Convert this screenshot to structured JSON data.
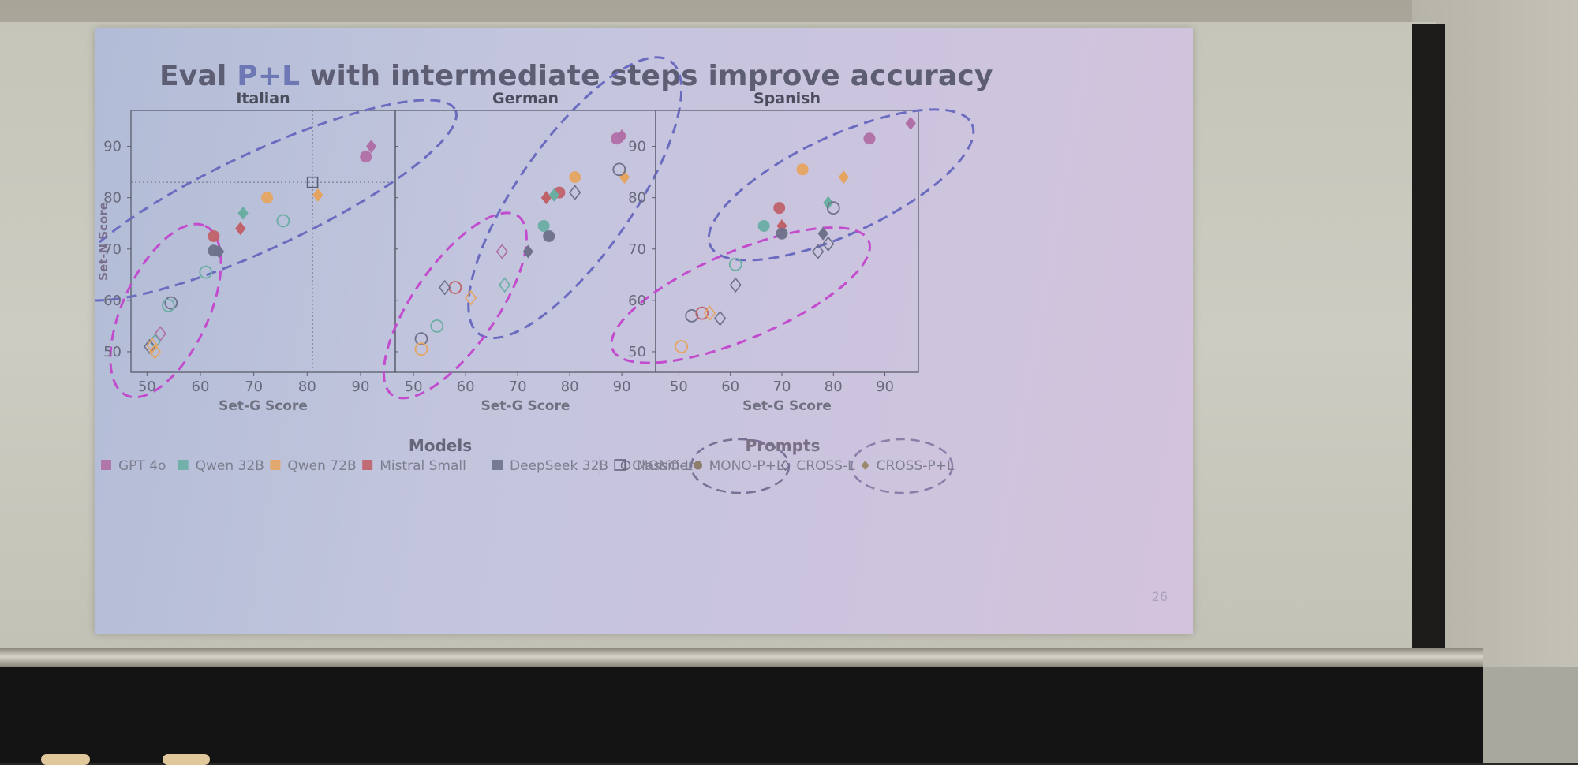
{
  "slide": {
    "title_pre": "Eval ",
    "title_hl": "P+L",
    "title_post": " with intermediate steps improve accuracy",
    "page_number": "26"
  },
  "colors": {
    "GPT 4o": "#b06fa6",
    "Qwen 32B": "#6aaea3",
    "Qwen 72B": "#e5a561",
    "Mistral Small": "#c0626a",
    "DeepSeek 32B": "#6e7189",
    "Classifier": "#5a5d78",
    "ellipse_top": "#6b6cc0",
    "ellipse_bottom": "#c24ccd"
  },
  "chart_data": [
    {
      "type": "scatter",
      "title": "Italian",
      "xlabel": "Set-G Score",
      "ylabel": "Set-N Score",
      "xlim": [
        47,
        96.5
      ],
      "ylim": [
        46,
        97
      ],
      "xticks": [
        50,
        60,
        70,
        80,
        90
      ],
      "yticks": [
        50,
        60,
        70,
        80,
        90
      ],
      "classifier_lines": {
        "x": 81,
        "y": 83
      },
      "points": [
        {
          "model": "GPT 4o",
          "prompt": "MONO-P+L",
          "x": 91,
          "y": 88
        },
        {
          "model": "GPT 4o",
          "prompt": "CROSS-P+L",
          "x": 92,
          "y": 90
        },
        {
          "model": "Qwen 72B",
          "prompt": "MONO-P+L",
          "x": 72.5,
          "y": 80
        },
        {
          "model": "Qwen 72B",
          "prompt": "CROSS-P+L",
          "x": 82,
          "y": 80.5
        },
        {
          "model": "Qwen 32B",
          "prompt": "CROSS-P+L",
          "x": 68,
          "y": 77
        },
        {
          "model": "Mistral Small",
          "prompt": "MONO-P+L",
          "x": 62.5,
          "y": 72.5
        },
        {
          "model": "Mistral Small",
          "prompt": "CROSS-P+L",
          "x": 67.5,
          "y": 74
        },
        {
          "model": "DeepSeek 32B",
          "prompt": "MONO-P+L",
          "x": 62.5,
          "y": 69.7
        },
        {
          "model": "DeepSeek 32B",
          "prompt": "CROSS-P+L",
          "x": 63.5,
          "y": 69.5
        },
        {
          "model": "Qwen 32B",
          "prompt": "MONO-L",
          "x": 75.5,
          "y": 75.5
        },
        {
          "model": "Qwen 32B",
          "prompt": "MONO-L",
          "x": 61,
          "y": 65.5
        },
        {
          "model": "DeepSeek 32B",
          "prompt": "MONO-L",
          "x": 54.5,
          "y": 59.5
        },
        {
          "model": "Qwen 32B",
          "prompt": "MONO-L",
          "x": 54,
          "y": 59
        },
        {
          "model": "GPT 4o",
          "prompt": "CROSS-L",
          "x": 52.5,
          "y": 53.5
        },
        {
          "model": "Qwen 32B",
          "prompt": "CROSS-L",
          "x": 51.5,
          "y": 52
        },
        {
          "model": "DeepSeek 32B",
          "prompt": "CROSS-L",
          "x": 50.5,
          "y": 51
        },
        {
          "model": "Qwen 72B",
          "prompt": "CROSS-L",
          "x": 51.5,
          "y": 50
        },
        {
          "model": "Qwen 72B",
          "prompt": "CROSS-L",
          "x": 51,
          "y": 51.2
        },
        {
          "model": "Classifier",
          "prompt": "",
          "x": 81,
          "y": 83
        }
      ],
      "ellipses": [
        {
          "group": "P+L",
          "cx": 71.5,
          "cy": 79.5,
          "rx": 40,
          "ry": 9,
          "angle": 25
        },
        {
          "group": "L",
          "cx": 53.5,
          "cy": 58,
          "rx": 17.5,
          "ry": 8,
          "angle": 65
        }
      ]
    },
    {
      "type": "scatter",
      "title": "German",
      "xlabel": "Set-G Score",
      "ylabel": "",
      "xlim": [
        46.5,
        96.5
      ],
      "ylim": [
        46,
        97
      ],
      "xticks": [
        50,
        60,
        70,
        80,
        90
      ],
      "yticks": [],
      "points": [
        {
          "model": "GPT 4o",
          "prompt": "MONO-P+L",
          "x": 89,
          "y": 91.5
        },
        {
          "model": "GPT 4o",
          "prompt": "CROSS-P+L",
          "x": 90,
          "y": 92
        },
        {
          "model": "Qwen 72B",
          "prompt": "MONO-P+L",
          "x": 81,
          "y": 84
        },
        {
          "model": "Qwen 72B",
          "prompt": "CROSS-P+L",
          "x": 90.5,
          "y": 84
        },
        {
          "model": "Mistral Small",
          "prompt": "MONO-P+L",
          "x": 78,
          "y": 81
        },
        {
          "model": "Mistral Small",
          "prompt": "CROSS-P+L",
          "x": 75.5,
          "y": 80
        },
        {
          "model": "Qwen 32B",
          "prompt": "CROSS-P+L",
          "x": 77,
          "y": 80.5
        },
        {
          "model": "Qwen 32B",
          "prompt": "MONO-P+L",
          "x": 75,
          "y": 74.5
        },
        {
          "model": "DeepSeek 32B",
          "prompt": "MONO-P+L",
          "x": 76,
          "y": 72.5
        },
        {
          "model": "DeepSeek 32B",
          "prompt": "CROSS-P+L",
          "x": 72,
          "y": 69.5
        },
        {
          "model": "DeepSeek 32B",
          "prompt": "MONO-L",
          "x": 89.5,
          "y": 85.5
        },
        {
          "model": "DeepSeek 32B",
          "prompt": "CROSS-L",
          "x": 81,
          "y": 81
        },
        {
          "model": "GPT 4o",
          "prompt": "CROSS-L",
          "x": 67,
          "y": 69.5
        },
        {
          "model": "Qwen 32B",
          "prompt": "CROSS-L",
          "x": 67.5,
          "y": 63
        },
        {
          "model": "Mistral Small",
          "prompt": "MONO-L",
          "x": 58,
          "y": 62.5
        },
        {
          "model": "DeepSeek 32B",
          "prompt": "CROSS-L",
          "x": 56,
          "y": 62.5
        },
        {
          "model": "Qwen 72B",
          "prompt": "CROSS-L",
          "x": 61,
          "y": 60.5
        },
        {
          "model": "Qwen 32B",
          "prompt": "MONO-L",
          "x": 54.5,
          "y": 55
        },
        {
          "model": "DeepSeek 32B",
          "prompt": "MONO-L",
          "x": 51.5,
          "y": 52.5
        },
        {
          "model": "Qwen 72B",
          "prompt": "MONO-L",
          "x": 51.5,
          "y": 50.5
        }
      ],
      "ellipses": [
        {
          "group": "P+L",
          "cx": 81,
          "cy": 80,
          "rx": 32,
          "ry": 11,
          "angle": 55
        },
        {
          "group": "L",
          "cx": 58,
          "cy": 59,
          "rx": 21,
          "ry": 8,
          "angle": 55
        }
      ]
    },
    {
      "type": "scatter",
      "title": "Spanish",
      "xlabel": "Set-G Score",
      "ylabel": "",
      "xlim": [
        45.5,
        96.5
      ],
      "ylim": [
        46,
        97
      ],
      "xticks": [
        50,
        60,
        70,
        80,
        90
      ],
      "yticks": [
        50,
        60,
        70,
        80,
        90
      ],
      "points": [
        {
          "model": "GPT 4o",
          "prompt": "CROSS-P+L",
          "x": 95,
          "y": 94.5
        },
        {
          "model": "GPT 4o",
          "prompt": "MONO-P+L",
          "x": 87,
          "y": 91.5
        },
        {
          "model": "Qwen 72B",
          "prompt": "MONO-P+L",
          "x": 74,
          "y": 85.5
        },
        {
          "model": "Qwen 72B",
          "prompt": "CROSS-P+L",
          "x": 82,
          "y": 84
        },
        {
          "model": "Mistral Small",
          "prompt": "MONO-P+L",
          "x": 69.5,
          "y": 78
        },
        {
          "model": "Mistral Small",
          "prompt": "CROSS-P+L",
          "x": 70,
          "y": 74.5
        },
        {
          "model": "Qwen 32B",
          "prompt": "MONO-P+L",
          "x": 66.5,
          "y": 74.5
        },
        {
          "model": "DeepSeek 32B",
          "prompt": "MONO-P+L",
          "x": 70,
          "y": 73
        },
        {
          "model": "DeepSeek 32B",
          "prompt": "CROSS-P+L",
          "x": 78,
          "y": 73
        },
        {
          "model": "Qwen 32B",
          "prompt": "CROSS-P+L",
          "x": 79,
          "y": 79
        },
        {
          "model": "DeepSeek 32B",
          "prompt": "MONO-L",
          "x": 80,
          "y": 78
        },
        {
          "model": "DeepSeek 32B",
          "prompt": "CROSS-L",
          "x": 79,
          "y": 71
        },
        {
          "model": "DeepSeek 32B",
          "prompt": "CROSS-L",
          "x": 77,
          "y": 69.5
        },
        {
          "model": "Qwen 32B",
          "prompt": "MONO-L",
          "x": 61,
          "y": 67
        },
        {
          "model": "DeepSeek 32B",
          "prompt": "CROSS-L",
          "x": 61,
          "y": 63
        },
        {
          "model": "DeepSeek 32B",
          "prompt": "MONO-L",
          "x": 52.5,
          "y": 57
        },
        {
          "model": "Mistral Small",
          "prompt": "MONO-L",
          "x": 54.5,
          "y": 57.5
        },
        {
          "model": "Qwen 72B",
          "prompt": "CROSS-L",
          "x": 56,
          "y": 57.5
        },
        {
          "model": "DeepSeek 32B",
          "prompt": "CROSS-L",
          "x": 58,
          "y": 56.5
        },
        {
          "model": "Qwen 72B",
          "prompt": "MONO-L",
          "x": 50.5,
          "y": 51
        }
      ],
      "ellipses": [
        {
          "group": "P+L",
          "cx": 81.5,
          "cy": 82.5,
          "rx": 28,
          "ry": 9.5,
          "angle": 25
        },
        {
          "group": "L",
          "cx": 62,
          "cy": 61,
          "rx": 27,
          "ry": 8.5,
          "angle": 23
        }
      ]
    }
  ],
  "legend": {
    "models_title": "Models",
    "models": [
      {
        "label": "GPT 4o",
        "marker": "square",
        "model": "GPT 4o"
      },
      {
        "label": "Qwen 32B",
        "marker": "square",
        "model": "Qwen 32B"
      },
      {
        "label": "Qwen 72B",
        "marker": "square",
        "model": "Qwen 72B"
      },
      {
        "label": "Mistral Small",
        "marker": "square",
        "model": "Mistral Small"
      },
      {
        "label": "DeepSeek 32B",
        "marker": "square",
        "model": "DeepSeek 32B"
      },
      {
        "label": "Classifier",
        "marker": "open-square",
        "model": "Classifier"
      }
    ],
    "prompts_title": "Prompts",
    "prompts": [
      {
        "label": "MONO-L",
        "marker": "open-circle"
      },
      {
        "label": "MONO-P+L",
        "marker": "circle"
      },
      {
        "label": "CROSS-L",
        "marker": "open-diamond"
      },
      {
        "label": "CROSS-P+L",
        "marker": "diamond"
      }
    ]
  }
}
